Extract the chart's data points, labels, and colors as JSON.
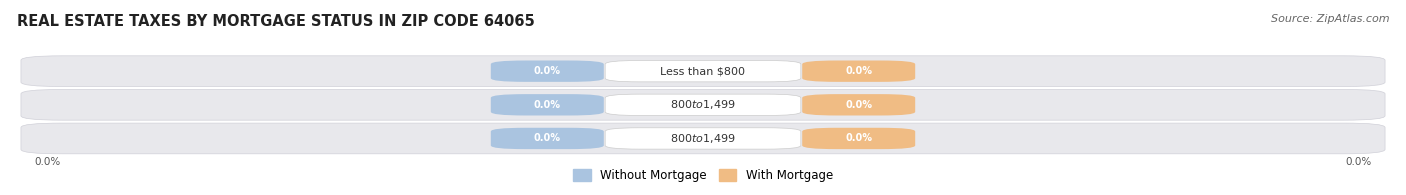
{
  "title": "REAL ESTATE TAXES BY MORTGAGE STATUS IN ZIP CODE 64065",
  "source": "Source: ZipAtlas.com",
  "categories": [
    "Less than $800",
    "$800 to $1,499",
    "$800 to $1,499"
  ],
  "without_mortgage_color": "#aac4e0",
  "with_mortgage_color": "#f0bc84",
  "row_bg_color": "#e8e8ec",
  "row_border_color": "#d0d0d8",
  "label_value": "0.0%",
  "axis_label_left": "0.0%",
  "axis_label_right": "0.0%",
  "title_fontsize": 10.5,
  "source_fontsize": 8,
  "legend_label_without": "Without Mortgage",
  "legend_label_with": "With Mortgage",
  "figsize": [
    14.06,
    1.95
  ],
  "dpi": 100,
  "bg_color": "#ffffff"
}
